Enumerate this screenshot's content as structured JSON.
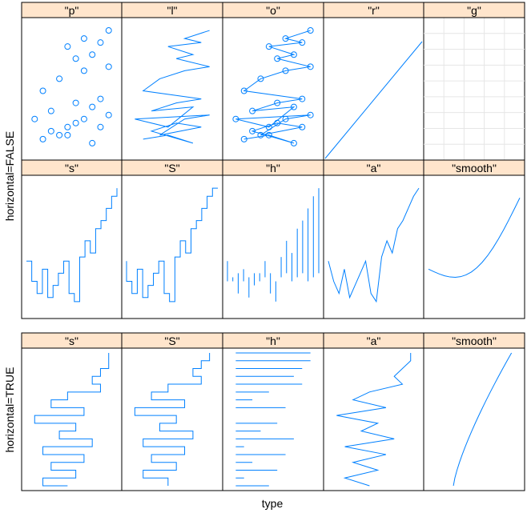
{
  "figure": {
    "xlabel": "type",
    "ylabel_top": "horizontal=FALSE",
    "ylabel_bottom": "horizontal=TRUE"
  },
  "colors": {
    "strip_bg": "#ffe5cc",
    "line": "#0080ff",
    "grid": "#e6e6e6",
    "frame": "#000000"
  },
  "chart_data": [
    {
      "group": "horizontal=FALSE",
      "type": "lattice-xyplot",
      "panels_row1": [
        "\"p\"",
        "\"l\"",
        "\"o\"",
        "\"r\"",
        "\"g\""
      ],
      "panels_row2": [
        "\"s\"",
        "\"S\"",
        "\"h\"",
        "\"a\"",
        "\"smooth\""
      ],
      "grid": true
    },
    {
      "group": "horizontal=TRUE",
      "type": "lattice-xyplot",
      "panels": [
        "\"s\"",
        "\"S\"",
        "\"h\"",
        "\"a\"",
        "\"smooth\""
      ]
    }
  ]
}
